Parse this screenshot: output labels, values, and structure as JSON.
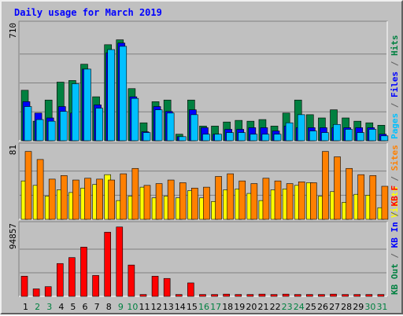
{
  "title": "Daily usage for March 2019",
  "panels": [
    {
      "max_label": "710",
      "legend": [
        {
          "text": "Pages",
          "color": "#00c0ff"
        },
        {
          "text": " / ",
          "color": "#606060"
        },
        {
          "text": "Files",
          "color": "#0000ff"
        },
        {
          "text": " / ",
          "color": "#606060"
        },
        {
          "text": "Hits",
          "color": "#008040"
        }
      ]
    },
    {
      "max_label": "81",
      "legend": [
        {
          "text": "Visits",
          "color": "#ffff00"
        },
        {
          "text": " / ",
          "color": "#606060"
        },
        {
          "text": "Sites",
          "color": "#ff8000"
        }
      ]
    },
    {
      "max_label": "94857",
      "legend": [
        {
          "text": "KB Out",
          "color": "#008040"
        },
        {
          "text": " / ",
          "color": "#606060"
        },
        {
          "text": "KB In",
          "color": "#0000ff"
        },
        {
          "text": " / ",
          "color": "#606060"
        },
        {
          "text": "KB F",
          "color": "#ff0000"
        }
      ]
    }
  ],
  "chart_data": {
    "type": "bar",
    "title": "Daily usage for March 2019",
    "categories": [
      "1",
      "2",
      "3",
      "4",
      "5",
      "6",
      "7",
      "8",
      "9",
      "10",
      "11",
      "12",
      "13",
      "14",
      "15",
      "16",
      "17",
      "18",
      "19",
      "20",
      "21",
      "22",
      "23",
      "24",
      "25",
      "26",
      "27",
      "28",
      "29",
      "30",
      "31"
    ],
    "weekend_days": [
      "2",
      "3",
      "9",
      "10",
      "16",
      "17",
      "23",
      "24",
      "30",
      "31"
    ],
    "colors": {
      "weekday_label": "#000000",
      "weekend_label": "#008040"
    },
    "panels": [
      {
        "ylim": [
          0,
          710
        ],
        "series": [
          {
            "name": "Hits",
            "color": "#008040",
            "values": [
              310,
              120,
              250,
              360,
              370,
              470,
              270,
              590,
              620,
              320,
              110,
              240,
              250,
              40,
              250,
              90,
              90,
              115,
              125,
              120,
              130,
              90,
              170,
              250,
              160,
              140,
              190,
              140,
              120,
              110,
              95
            ]
          },
          {
            "name": "Files",
            "color": "#0000ff",
            "values": [
              240,
              170,
              140,
              210,
              170,
              440,
              220,
              540,
              600,
              270,
              55,
              210,
              180,
              25,
              190,
              80,
              40,
              70,
              70,
              80,
              80,
              60,
              90,
              80,
              80,
              80,
              80,
              80,
              80,
              80,
              40
            ]
          },
          {
            "name": "Pages",
            "color": "#00c0ff",
            "values": [
              210,
              130,
              120,
              180,
              350,
              440,
              200,
              560,
              580,
              260,
              50,
              190,
              170,
              25,
              160,
              40,
              40,
              50,
              50,
              40,
              40,
              40,
              110,
              160,
              60,
              50,
              100,
              70,
              50,
              70,
              30
            ]
          }
        ]
      },
      {
        "ylim": [
          0,
          81
        ],
        "series": [
          {
            "name": "Visits",
            "color": "#ffff00",
            "values": [
              43,
              38,
              26,
              33,
              30,
              35,
              39,
              50,
              21,
              26,
              36,
              24,
              26,
              24,
              32,
              24,
              20,
              33,
              34,
              29,
              21,
              33,
              34,
              38,
              41,
              26,
              31,
              19,
              28,
              27,
              13
            ]
          },
          {
            "name": "Sites",
            "color": "#ff8000",
            "values": [
              76,
              67,
              45,
              49,
              44,
              46,
              45,
              44,
              51,
              57,
              38,
              40,
              44,
              41,
              35,
              36,
              48,
              51,
              43,
              40,
              46,
              43,
              40,
              42,
              41,
              76,
              70,
              57,
              50,
              49,
              37
            ]
          }
        ]
      },
      {
        "ylim": [
          0,
          94857
        ],
        "series": [
          {
            "name": "KB F",
            "color": "#ff0000",
            "values": [
              27000,
              10000,
              13000,
              44000,
              52000,
              66000,
              28000,
              86000,
              93000,
              42000,
              2500,
              27000,
              24000,
              2500,
              18000,
              2500,
              2500,
              3000,
              2500,
              2500,
              3000,
              2500,
              3000,
              2500,
              2500,
              2500,
              3000,
              2500,
              2500,
              2500,
              2500
            ]
          }
        ]
      }
    ]
  }
}
